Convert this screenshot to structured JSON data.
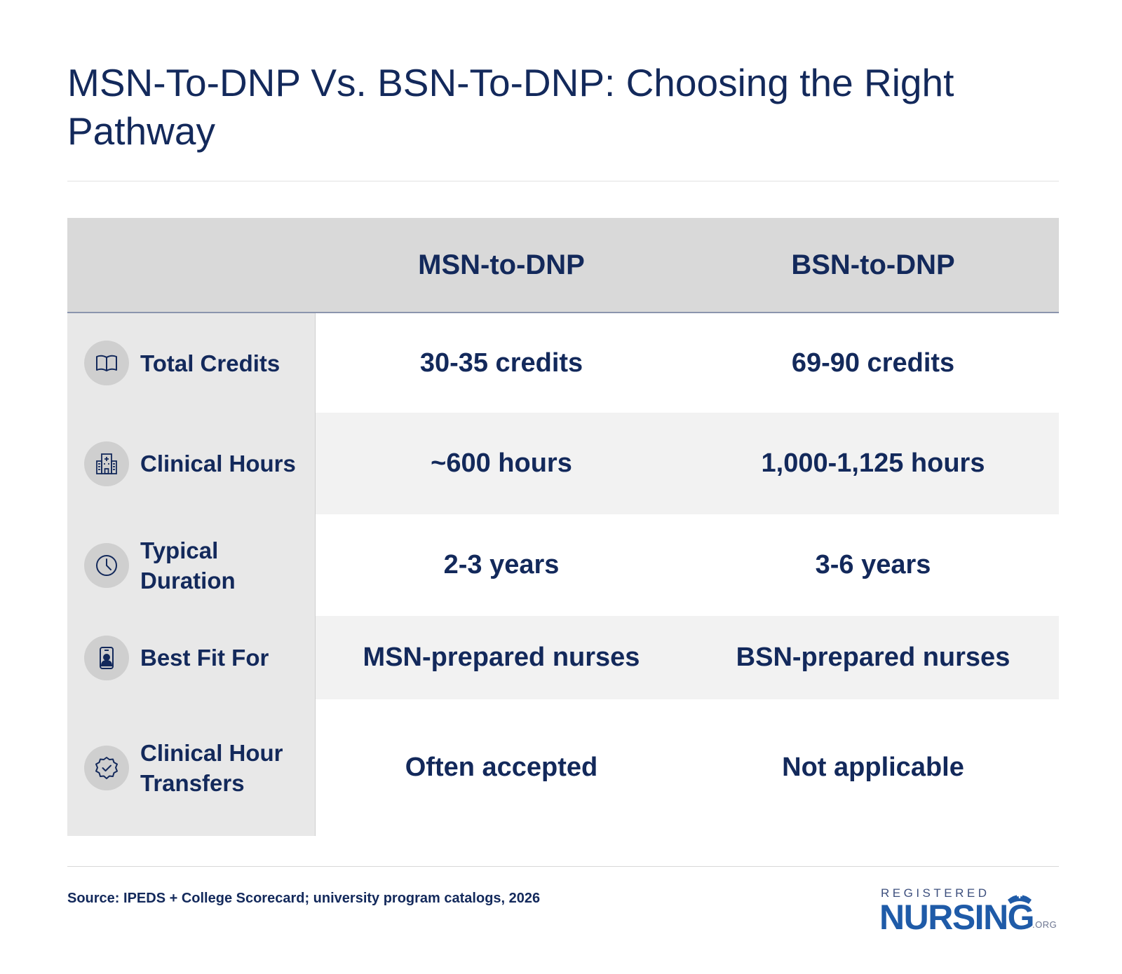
{
  "title": "MSN-To-DNP Vs. BSN-To-DNP: Choosing the Right Pathway",
  "table": {
    "columns": [
      "MSN-to-DNP",
      "BSN-to-DNP"
    ],
    "rows": [
      {
        "label": "Total Credits",
        "icon": "book-icon",
        "values": [
          "30-35 credits",
          "69-90 credits"
        ]
      },
      {
        "label": "Clinical Hours",
        "icon": "hospital-icon",
        "values": [
          "~600 hours",
          "1,000-1,125 hours"
        ]
      },
      {
        "label": "Typical Duration",
        "icon": "clock-icon",
        "values": [
          "2-3 years",
          "3-6 years"
        ]
      },
      {
        "label": "Best Fit For",
        "icon": "id-badge-icon",
        "values": [
          "MSN-prepared nurses",
          "BSN-prepared nurses"
        ]
      },
      {
        "label": "Clinical Hour Transfers",
        "icon": "check-badge-icon",
        "values": [
          "Often accepted",
          "Not applicable"
        ]
      }
    ]
  },
  "source": "Source: IPEDS + College Scorecard; university program catalogs, 2026",
  "logo": {
    "top": "REGISTERED",
    "main": "NURSING",
    "suffix": ".ORG"
  },
  "colors": {
    "text": "#13295b",
    "header_bg": "#d9d9d9",
    "label_bg": "#e8e8e8",
    "shade_bg": "#f2f2f2",
    "logo_blue": "#1f5ba8"
  }
}
